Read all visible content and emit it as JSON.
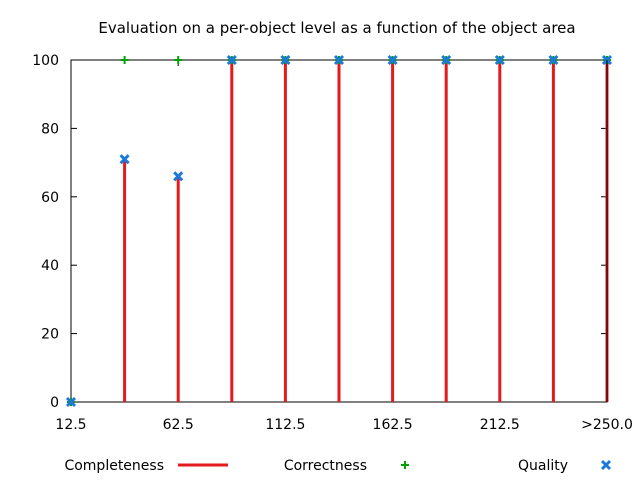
{
  "chart_data": {
    "type": "bar",
    "title": "Evaluation on a per-object level as a function of the object area",
    "xlabel": "",
    "ylabel": "",
    "ylim": [
      0,
      100
    ],
    "yticks": [
      "0",
      "20",
      "40",
      "60",
      "80",
      "100"
    ],
    "xtick_labels": [
      "12.5",
      "62.5",
      "112.5",
      "162.5",
      "212.5",
      ">250.0"
    ],
    "categories": [
      "12.5",
      "37.5",
      "62.5",
      "87.5",
      "112.5",
      "137.5",
      "162.5",
      "187.5",
      "212.5",
      "237.5",
      ">250.0"
    ],
    "series": [
      {
        "name": "Completeness",
        "style": "impulse",
        "color": "#e41a1c",
        "values": [
          0,
          71,
          66,
          100,
          100,
          100,
          100,
          100,
          100,
          100,
          100
        ]
      },
      {
        "name": "Correctness",
        "style": "plus",
        "color": "#00a000",
        "values": [
          0,
          100,
          100,
          100,
          100,
          100,
          100,
          100,
          100,
          100,
          100
        ]
      },
      {
        "name": "Quality",
        "style": "x",
        "color": "#1e78dc",
        "values": [
          0,
          71,
          66,
          100,
          100,
          100,
          100,
          100,
          100,
          100,
          100
        ]
      }
    ],
    "legend": {
      "placement": "bottom",
      "items": [
        "Completeness",
        "Correctness",
        "Quality"
      ]
    },
    "grid": false
  }
}
